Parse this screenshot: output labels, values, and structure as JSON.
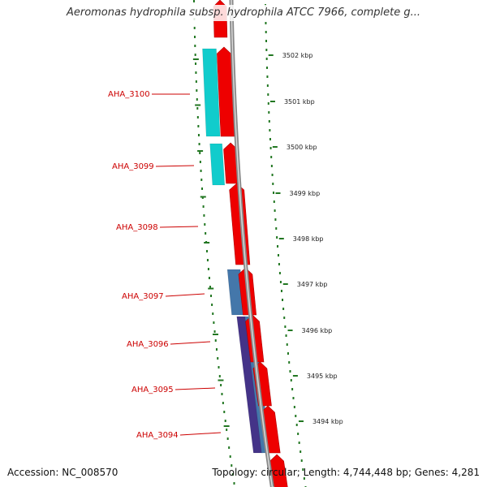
{
  "title": "Aeromonas hydrophila subsp. hydrophila ATCC 7966, complete g...",
  "footer": {
    "accession": "Accession: NC_008570",
    "summary": "Topology: circular; Length: 4,744,448 bp; Genes: 4,281"
  },
  "colors": {
    "forward_gene": "#ee0000",
    "cyan_feature": "#11cccc",
    "blue_feature": "#4477aa",
    "navy_feature": "#443388",
    "label_red": "#cc0000",
    "tick_green": "#227722",
    "backbone": "#888888"
  },
  "kbp_ticks": [
    "3502 kbp",
    "3501 kbp",
    "3500 kbp",
    "3499 kbp",
    "3498 kbp",
    "3497 kbp",
    "3496 kbp",
    "3495 kbp",
    "3494 kbp"
  ],
  "genes": [
    {
      "name": "AHA_3100"
    },
    {
      "name": "AHA_3099"
    },
    {
      "name": "AHA_3098"
    },
    {
      "name": "AHA_3097"
    },
    {
      "name": "AHA_3096"
    },
    {
      "name": "AHA_3095"
    },
    {
      "name": "AHA_3094"
    }
  ]
}
